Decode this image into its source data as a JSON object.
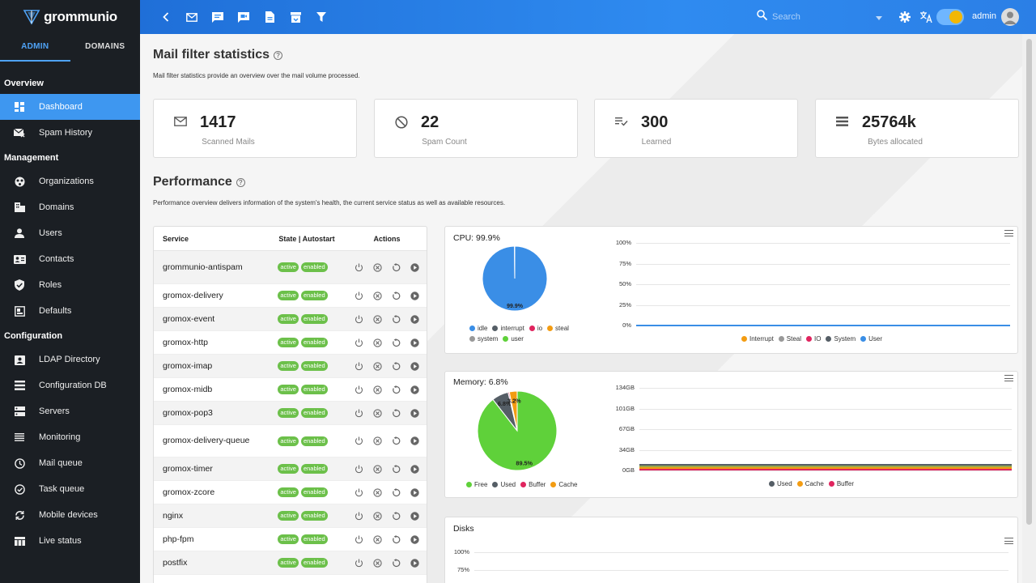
{
  "app": {
    "name": "grommunio"
  },
  "sidebar": {
    "tabs": [
      {
        "label": "ADMIN"
      },
      {
        "label": "DOMAINS"
      }
    ],
    "sections": {
      "overview": "Overview",
      "management": "Management",
      "configuration": "Configuration"
    },
    "items": [
      {
        "label": "Dashboard",
        "icon": "dashboard-icon"
      },
      {
        "label": "Spam History",
        "icon": "spam-history-icon"
      },
      {
        "label": "Organizations",
        "icon": "organizations-icon"
      },
      {
        "label": "Domains",
        "icon": "domains-icon"
      },
      {
        "label": "Users",
        "icon": "user-icon"
      },
      {
        "label": "Contacts",
        "icon": "contacts-icon"
      },
      {
        "label": "Roles",
        "icon": "shield-icon"
      },
      {
        "label": "Defaults",
        "icon": "defaults-icon"
      },
      {
        "label": "LDAP Directory",
        "icon": "ldap-icon"
      },
      {
        "label": "Configuration DB",
        "icon": "database-icon"
      },
      {
        "label": "Servers",
        "icon": "servers-icon"
      },
      {
        "label": "Monitoring",
        "icon": "monitoring-icon"
      },
      {
        "label": "Mail queue",
        "icon": "clock-icon"
      },
      {
        "label": "Task queue",
        "icon": "check-circle-icon"
      },
      {
        "label": "Mobile devices",
        "icon": "sync-icon"
      },
      {
        "label": "Live status",
        "icon": "table-icon"
      }
    ]
  },
  "header": {
    "search_placeholder": "Search",
    "username": "admin",
    "accent": "#2f8bf0"
  },
  "mail_stats": {
    "title": "Mail filter statistics",
    "description": "Mail filter statistics provide an overview over the mail volume processed.",
    "cards": [
      {
        "value": "1417",
        "label": "Scanned Mails",
        "icon": "mail-icon"
      },
      {
        "value": "22",
        "label": "Spam Count",
        "icon": "block-icon"
      },
      {
        "value": "300",
        "label": "Learned",
        "icon": "learned-icon"
      },
      {
        "value": "25764k",
        "label": "Bytes allocated",
        "icon": "storage-icon"
      }
    ]
  },
  "performance": {
    "title": "Performance",
    "description": "Performance overview delivers information of the system's health, the current service status as well as available resources."
  },
  "services": {
    "headers": {
      "service": "Service",
      "state": "State | Autostart",
      "actions": "Actions"
    },
    "rows": [
      {
        "name": "grommunio-antispam",
        "state": "active",
        "autostart": "enabled"
      },
      {
        "name": "gromox-delivery",
        "state": "active",
        "autostart": "enabled"
      },
      {
        "name": "gromox-event",
        "state": "active",
        "autostart": "enabled"
      },
      {
        "name": "gromox-http",
        "state": "active",
        "autostart": "enabled"
      },
      {
        "name": "gromox-imap",
        "state": "active",
        "autostart": "enabled"
      },
      {
        "name": "gromox-midb",
        "state": "active",
        "autostart": "enabled"
      },
      {
        "name": "gromox-pop3",
        "state": "active",
        "autostart": "enabled"
      },
      {
        "name": "gromox-delivery-queue",
        "state": "active",
        "autostart": "enabled"
      },
      {
        "name": "gromox-timer",
        "state": "active",
        "autostart": "enabled"
      },
      {
        "name": "gromox-zcore",
        "state": "active",
        "autostart": "enabled"
      },
      {
        "name": "nginx",
        "state": "active",
        "autostart": "enabled"
      },
      {
        "name": "php-fpm",
        "state": "active",
        "autostart": "enabled"
      },
      {
        "name": "postfix",
        "state": "active",
        "autostart": "enabled"
      }
    ]
  },
  "chart_data": [
    {
      "type": "pie",
      "title": "CPU: 99.9%",
      "slices": [
        {
          "name": "idle",
          "value": 99.9,
          "color": "#3a8ee6",
          "label": "99.9%"
        },
        {
          "name": "interrupt",
          "value": 0.02,
          "color": "#555e66"
        },
        {
          "name": "io",
          "value": 0.02,
          "color": "#e0245e"
        },
        {
          "name": "steal",
          "value": 0.02,
          "color": "#f39c12"
        },
        {
          "name": "system",
          "value": 0.02,
          "color": "#999999"
        },
        {
          "name": "user",
          "value": 0.02,
          "color": "#5fd13a"
        }
      ]
    },
    {
      "type": "line",
      "yticks": [
        "100%",
        "75%",
        "50%",
        "25%",
        "0%"
      ],
      "ylim": [
        0,
        100
      ],
      "series": [
        {
          "name": "Interrupt",
          "color": "#f39c12"
        },
        {
          "name": "Steal",
          "color": "#999999"
        },
        {
          "name": "IO",
          "color": "#e0245e"
        },
        {
          "name": "System",
          "color": "#555e66"
        },
        {
          "name": "User",
          "color": "#3a8ee6"
        }
      ]
    },
    {
      "type": "pie",
      "title": "Memory: 6.8%",
      "slices": [
        {
          "name": "Free",
          "value": 89.5,
          "color": "#5fd13a",
          "label": "89.5%"
        },
        {
          "name": "Used",
          "value": 6.8,
          "color": "#555e66",
          "label": "6.8%"
        },
        {
          "name": "Buffer",
          "value": 0.5,
          "color": "#e0245e"
        },
        {
          "name": "Cache",
          "value": 3.2,
          "color": "#f39c12",
          "label": "3.2%"
        }
      ]
    },
    {
      "type": "area",
      "yticks": [
        "134GB",
        "101GB",
        "67GB",
        "34GB",
        "0GB"
      ],
      "series": [
        {
          "name": "Used",
          "color": "#555e66"
        },
        {
          "name": "Cache",
          "color": "#f39c12"
        },
        {
          "name": "Buffer",
          "color": "#e0245e"
        }
      ]
    },
    {
      "type": "line",
      "title": "Disks",
      "yticks": [
        "100%",
        "75%"
      ]
    }
  ]
}
